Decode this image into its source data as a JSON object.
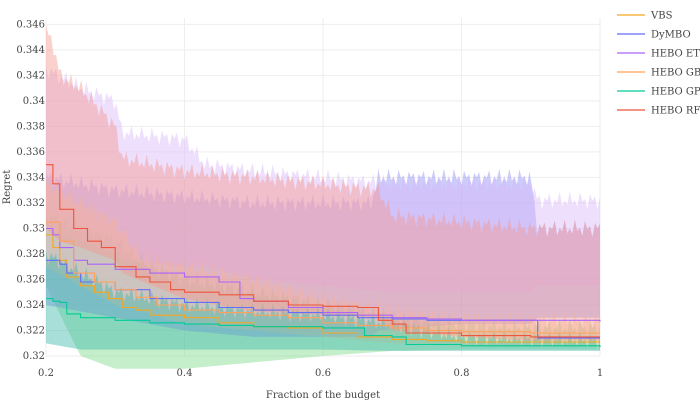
{
  "chart_data": {
    "type": "line",
    "title": "",
    "xlabel": "Fraction of the budget",
    "ylabel": "Regret",
    "xlim": [
      0.2,
      1.0
    ],
    "ylim": [
      0.32,
      0.3465
    ],
    "x_ticks": [
      0.2,
      0.4,
      0.6,
      0.8,
      1
    ],
    "x_tick_labels": [
      "0.2",
      "0.4",
      "0.6",
      "0.8",
      "1"
    ],
    "y_ticks": [
      0.32,
      0.322,
      0.324,
      0.326,
      0.328,
      0.33,
      0.332,
      0.334,
      0.336,
      0.338,
      0.34,
      0.342,
      0.344,
      0.346
    ],
    "y_tick_labels": [
      "0.32",
      "0.322",
      "0.324",
      "0.326",
      "0.328",
      "0.33",
      "0.332",
      "0.334",
      "0.336",
      "0.338",
      "0.34",
      "0.342",
      "0.344",
      "0.346"
    ],
    "grid": true,
    "legend_position": "right",
    "series": [
      {
        "name": "VBS",
        "color": "#f5a623",
        "band_color": "#7ed98c",
        "points": [
          [
            0.2,
            0.3295
          ],
          [
            0.21,
            0.3285
          ],
          [
            0.22,
            0.3275
          ],
          [
            0.23,
            0.3262
          ],
          [
            0.25,
            0.3255
          ],
          [
            0.27,
            0.325
          ],
          [
            0.29,
            0.3245
          ],
          [
            0.31,
            0.3238
          ],
          [
            0.33,
            0.3236
          ],
          [
            0.35,
            0.3232
          ],
          [
            0.4,
            0.323
          ],
          [
            0.45,
            0.3226
          ],
          [
            0.5,
            0.3223
          ],
          [
            0.55,
            0.3222
          ],
          [
            0.6,
            0.3218
          ],
          [
            0.65,
            0.3215
          ],
          [
            0.7,
            0.3213
          ],
          [
            0.75,
            0.3212
          ],
          [
            0.8,
            0.3211
          ],
          [
            0.9,
            0.3211
          ],
          [
            1.0,
            0.3211
          ]
        ],
        "band": [
          [
            0.2,
            0.3255,
            0.331
          ],
          [
            0.25,
            0.32,
            0.33
          ],
          [
            0.3,
            0.319,
            0.329
          ],
          [
            0.35,
            0.319,
            0.327
          ],
          [
            0.4,
            0.319,
            0.326
          ],
          [
            0.5,
            0.3195,
            0.325
          ],
          [
            0.6,
            0.32,
            0.324
          ],
          [
            0.7,
            0.3204,
            0.323
          ],
          [
            0.8,
            0.3205,
            0.3225
          ],
          [
            0.9,
            0.3205,
            0.3222
          ],
          [
            1.0,
            0.3205,
            0.3222
          ]
        ]
      },
      {
        "name": "DyMBO",
        "color": "#636efa",
        "band_color": "#8e8cf5",
        "points": [
          [
            0.2,
            0.3275
          ],
          [
            0.22,
            0.3272
          ],
          [
            0.23,
            0.3265
          ],
          [
            0.25,
            0.3258
          ],
          [
            0.3,
            0.3252
          ],
          [
            0.35,
            0.3245
          ],
          [
            0.4,
            0.3242
          ],
          [
            0.45,
            0.3238
          ],
          [
            0.5,
            0.3236
          ],
          [
            0.55,
            0.3234
          ],
          [
            0.6,
            0.3232
          ],
          [
            0.65,
            0.323
          ],
          [
            0.7,
            0.3229
          ],
          [
            0.75,
            0.3228
          ],
          [
            0.8,
            0.3228
          ],
          [
            0.85,
            0.3228
          ],
          [
            0.9,
            0.3228
          ],
          [
            0.91,
            0.3214
          ],
          [
            1.0,
            0.3214
          ]
        ],
        "band": [
          [
            0.2,
            0.324,
            0.334
          ],
          [
            0.3,
            0.323,
            0.333
          ],
          [
            0.4,
            0.322,
            0.3325
          ],
          [
            0.5,
            0.3215,
            0.332
          ],
          [
            0.6,
            0.3215,
            0.332
          ],
          [
            0.67,
            0.3215,
            0.332
          ],
          [
            0.68,
            0.322,
            0.334
          ],
          [
            0.8,
            0.3225,
            0.334
          ],
          [
            0.9,
            0.3225,
            0.334
          ],
          [
            0.91,
            0.323,
            0.33
          ],
          [
            1.0,
            0.323,
            0.33
          ]
        ]
      },
      {
        "name": "HEBO ET",
        "color": "#ab63fa",
        "band_color": "#d9b8fb",
        "points": [
          [
            0.2,
            0.33
          ],
          [
            0.21,
            0.3295
          ],
          [
            0.22,
            0.3285
          ],
          [
            0.24,
            0.3275
          ],
          [
            0.26,
            0.3272
          ],
          [
            0.3,
            0.3268
          ],
          [
            0.35,
            0.3265
          ],
          [
            0.4,
            0.3262
          ],
          [
            0.45,
            0.3258
          ],
          [
            0.48,
            0.3245
          ],
          [
            0.5,
            0.3243
          ],
          [
            0.55,
            0.3238
          ],
          [
            0.6,
            0.3234
          ],
          [
            0.65,
            0.3232
          ],
          [
            0.7,
            0.323
          ],
          [
            0.75,
            0.3229
          ],
          [
            0.8,
            0.3228
          ],
          [
            0.9,
            0.3228
          ],
          [
            1.0,
            0.3227
          ]
        ],
        "band": [
          [
            0.2,
            0.33,
            0.3425
          ],
          [
            0.25,
            0.329,
            0.341
          ],
          [
            0.3,
            0.328,
            0.34
          ],
          [
            0.31,
            0.3275,
            0.3375
          ],
          [
            0.4,
            0.327,
            0.337
          ],
          [
            0.43,
            0.327,
            0.335
          ],
          [
            0.5,
            0.326,
            0.3345
          ],
          [
            0.6,
            0.3255,
            0.334
          ],
          [
            0.7,
            0.325,
            0.3335
          ],
          [
            0.8,
            0.325,
            0.3335
          ],
          [
            0.9,
            0.325,
            0.3335
          ],
          [
            0.91,
            0.3255,
            0.3322
          ],
          [
            1.0,
            0.3255,
            0.3322
          ]
        ]
      },
      {
        "name": "HEBO GB",
        "color": "#ffa15a",
        "band_color": "#f7c89c",
        "points": [
          [
            0.2,
            0.3305
          ],
          [
            0.22,
            0.329
          ],
          [
            0.24,
            0.3265
          ],
          [
            0.27,
            0.3258
          ],
          [
            0.3,
            0.3252
          ],
          [
            0.33,
            0.3246
          ],
          [
            0.36,
            0.324
          ],
          [
            0.4,
            0.3236
          ],
          [
            0.45,
            0.3234
          ],
          [
            0.5,
            0.3232
          ],
          [
            0.55,
            0.323
          ],
          [
            0.6,
            0.3226
          ],
          [
            0.65,
            0.3224
          ],
          [
            0.7,
            0.3222
          ],
          [
            0.75,
            0.322
          ],
          [
            0.8,
            0.3219
          ],
          [
            0.9,
            0.3218
          ],
          [
            1.0,
            0.3218
          ]
        ],
        "band": [
          [
            0.2,
            0.327,
            0.3335
          ],
          [
            0.3,
            0.324,
            0.3305
          ],
          [
            0.34,
            0.3235,
            0.3275
          ],
          [
            0.4,
            0.3225,
            0.327
          ],
          [
            0.5,
            0.322,
            0.326
          ],
          [
            0.6,
            0.3215,
            0.3245
          ],
          [
            0.7,
            0.321,
            0.3235
          ],
          [
            0.8,
            0.3208,
            0.323
          ],
          [
            1.0,
            0.3208,
            0.3228
          ]
        ]
      },
      {
        "name": "HEBO GP",
        "color": "#00cc96",
        "band_color": "#3fb8a9",
        "points": [
          [
            0.2,
            0.3245
          ],
          [
            0.21,
            0.3243
          ],
          [
            0.22,
            0.3242
          ],
          [
            0.23,
            0.3233
          ],
          [
            0.25,
            0.323
          ],
          [
            0.3,
            0.3228
          ],
          [
            0.35,
            0.3226
          ],
          [
            0.4,
            0.3225
          ],
          [
            0.45,
            0.3224
          ],
          [
            0.5,
            0.3223
          ],
          [
            0.55,
            0.3223
          ],
          [
            0.6,
            0.3222
          ],
          [
            0.65,
            0.3222
          ],
          [
            0.66,
            0.3216
          ],
          [
            0.7,
            0.3215
          ],
          [
            0.72,
            0.3209
          ],
          [
            0.8,
            0.3208
          ],
          [
            0.9,
            0.3208
          ],
          [
            1.0,
            0.3207
          ]
        ],
        "band": [
          [
            0.2,
            0.321,
            0.328
          ],
          [
            0.25,
            0.3205,
            0.3265
          ],
          [
            0.3,
            0.3205,
            0.325
          ],
          [
            0.4,
            0.3205,
            0.324
          ],
          [
            0.5,
            0.3205,
            0.3235
          ],
          [
            0.6,
            0.3205,
            0.3232
          ],
          [
            0.7,
            0.3204,
            0.3225
          ],
          [
            0.8,
            0.3204,
            0.3215
          ],
          [
            1.0,
            0.3204,
            0.3212
          ]
        ]
      },
      {
        "name": "HEBO RF",
        "color": "#ef553b",
        "band_color": "#f59a8e",
        "points": [
          [
            0.2,
            0.335
          ],
          [
            0.21,
            0.3335
          ],
          [
            0.22,
            0.3315
          ],
          [
            0.24,
            0.33
          ],
          [
            0.26,
            0.329
          ],
          [
            0.28,
            0.3285
          ],
          [
            0.3,
            0.327
          ],
          [
            0.33,
            0.3262
          ],
          [
            0.35,
            0.3258
          ],
          [
            0.38,
            0.3252
          ],
          [
            0.4,
            0.325
          ],
          [
            0.45,
            0.3248
          ],
          [
            0.5,
            0.3243
          ],
          [
            0.55,
            0.324
          ],
          [
            0.6,
            0.3239
          ],
          [
            0.65,
            0.3238
          ],
          [
            0.68,
            0.3228
          ],
          [
            0.7,
            0.3225
          ],
          [
            0.72,
            0.3218
          ],
          [
            0.8,
            0.3216
          ],
          [
            0.9,
            0.3215
          ],
          [
            1.0,
            0.3215
          ]
        ],
        "band": [
          [
            0.2,
            0.33,
            0.3455
          ],
          [
            0.21,
            0.3295,
            0.3445
          ],
          [
            0.22,
            0.329,
            0.342
          ],
          [
            0.25,
            0.3285,
            0.341
          ],
          [
            0.3,
            0.3275,
            0.338
          ],
          [
            0.31,
            0.3265,
            0.3355
          ],
          [
            0.4,
            0.3245,
            0.3345
          ],
          [
            0.5,
            0.3235,
            0.334
          ],
          [
            0.6,
            0.3232,
            0.3335
          ],
          [
            0.68,
            0.323,
            0.333
          ],
          [
            0.7,
            0.322,
            0.331
          ],
          [
            0.8,
            0.3215,
            0.3305
          ],
          [
            0.9,
            0.3212,
            0.33
          ],
          [
            1.0,
            0.3212,
            0.33
          ]
        ]
      }
    ]
  }
}
